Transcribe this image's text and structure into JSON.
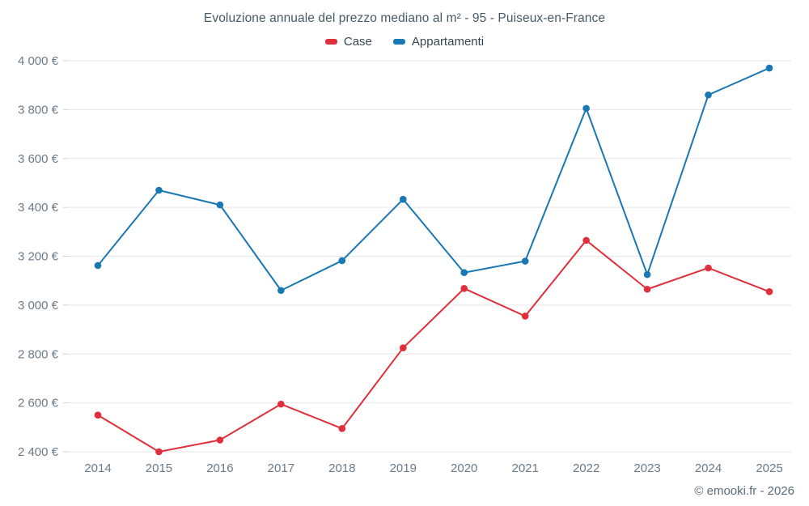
{
  "chart_data": {
    "type": "line",
    "title": "Evoluzione annuale del prezzo mediano al m² - 95 - Puiseux-en-France",
    "xlabel": "",
    "ylabel": "",
    "legend_position": "top",
    "grid": true,
    "categories": [
      "2014",
      "2015",
      "2016",
      "2017",
      "2018",
      "2019",
      "2020",
      "2021",
      "2022",
      "2023",
      "2024",
      "2025"
    ],
    "series": [
      {
        "name": "Case",
        "color": "#e02f3a",
        "values": [
          2550,
          2400,
          2448,
          2595,
          2495,
          2825,
          3068,
          2955,
          3265,
          3065,
          3152,
          3055
        ]
      },
      {
        "name": "Appartamenti",
        "color": "#1878b4",
        "values": [
          3162,
          3470,
          3410,
          3060,
          3182,
          3433,
          3133,
          3180,
          3805,
          3125,
          3860,
          3970
        ]
      }
    ],
    "ylim": [
      2400,
      4000
    ],
    "ytick_step": 200,
    "ytick_labels": [
      "2 400 €",
      "2 600 €",
      "2 800 €",
      "3 000 €",
      "3 200 €",
      "3 400 €",
      "3 600 €",
      "3 800 €",
      "4 000 €"
    ],
    "colors": {
      "gridline": "#e6e6e6",
      "tick": "#cfd4d8",
      "axis_label": "#6b7a86"
    }
  },
  "footer": {
    "attribution": "© emooki.fr - 2026"
  }
}
